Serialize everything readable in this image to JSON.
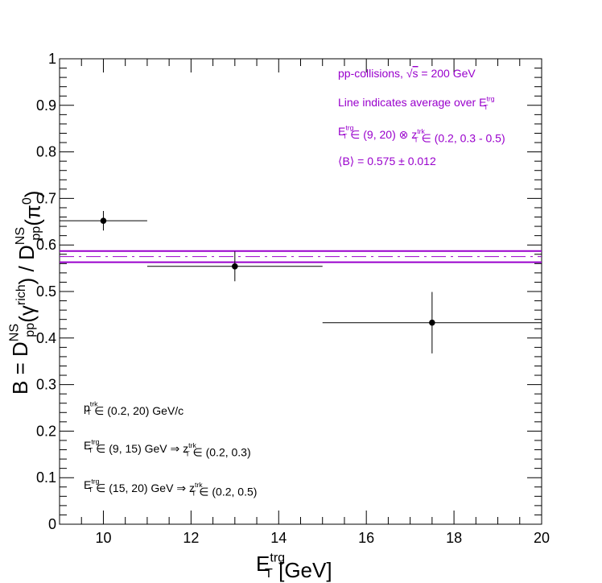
{
  "chart_data": {
    "type": "scatter",
    "xlabel_main": "E",
    "xlabel_sup": "trg",
    "xlabel_sub": "T",
    "xlabel_unit": " [GeV]",
    "ylabel_parts": {
      "prefix": "B = D",
      "sup1": "NS",
      "sub1": "pp",
      "mid": "(γ",
      "sup2": "rich",
      "mid2": ") / D",
      "sup3": "NS",
      "sub3": "pp",
      "mid3": "(π",
      "sup4": "0",
      "end": ")"
    },
    "xlim": [
      9,
      20
    ],
    "ylim": [
      0,
      1
    ],
    "x_ticks": [
      "10",
      "12",
      "14",
      "16",
      "18",
      "20"
    ],
    "x_tick_values": [
      10,
      12,
      14,
      16,
      18,
      20
    ],
    "y_ticks": [
      "0",
      "0.1",
      "0.2",
      "0.3",
      "0.4",
      "0.5",
      "0.6",
      "0.7",
      "0.8",
      "0.9",
      "1"
    ],
    "y_tick_values": [
      0,
      0.1,
      0.2,
      0.3,
      0.4,
      0.5,
      0.6,
      0.7,
      0.8,
      0.9,
      1
    ],
    "points": [
      {
        "x": 10,
        "y": 0.652,
        "xerr_low": 9,
        "xerr_high": 11,
        "yerr": 0.021
      },
      {
        "x": 13,
        "y": 0.554,
        "xerr_low": 11,
        "xerr_high": 15,
        "yerr": 0.032
      },
      {
        "x": 17.5,
        "y": 0.433,
        "xerr_low": 15,
        "xerr_high": 20,
        "yerr": 0.066
      }
    ],
    "average": {
      "value": 0.575,
      "error": 0.012,
      "x_from": 9,
      "x_to": 20
    },
    "colors": {
      "average": "#9900cc",
      "points": "#000000",
      "legend": "#9900cc"
    },
    "legend_right": [
      {
        "type": "sqrt",
        "pre": "pp-collisions, ",
        "radicand": "s",
        "post": " = 200 GeV"
      },
      {
        "type": "et",
        "pre": "Line indicates average over ",
        "main": "E",
        "sup": "trg",
        "sub": "T",
        "post": ""
      },
      {
        "type": "combo",
        "main1": "E",
        "sup1": "trg",
        "sub1": "T",
        "mid": " ∈ (9, 20) ⊗ ",
        "main2": "z",
        "sup2": "trk",
        "sub2": "T",
        "post": " ∈ (0.2, 0.3 - 0.5)"
      },
      {
        "type": "plain",
        "text": "⟨B⟩ = 0.575 ± 0.012"
      }
    ],
    "legend_left": [
      {
        "main": "p",
        "sup": "trk",
        "sub": "T",
        "post": " ∈ (0.2, 20) GeV/c"
      },
      {
        "main": "E",
        "sup": "trg",
        "sub": "T",
        "mid": " ∈ (9, 15) GeV ⇒ ",
        "main2": "z",
        "sup2": "trk",
        "sub2": "T",
        "post": " ∈ (0.2, 0.3)"
      },
      {
        "main": "E",
        "sup": "trg",
        "sub": "T",
        "mid": " ∈ (15, 20) GeV ⇒ ",
        "main2": "z",
        "sup2": "trk",
        "sub2": "T",
        "post": " ∈ (0.2, 0.5)"
      }
    ]
  }
}
